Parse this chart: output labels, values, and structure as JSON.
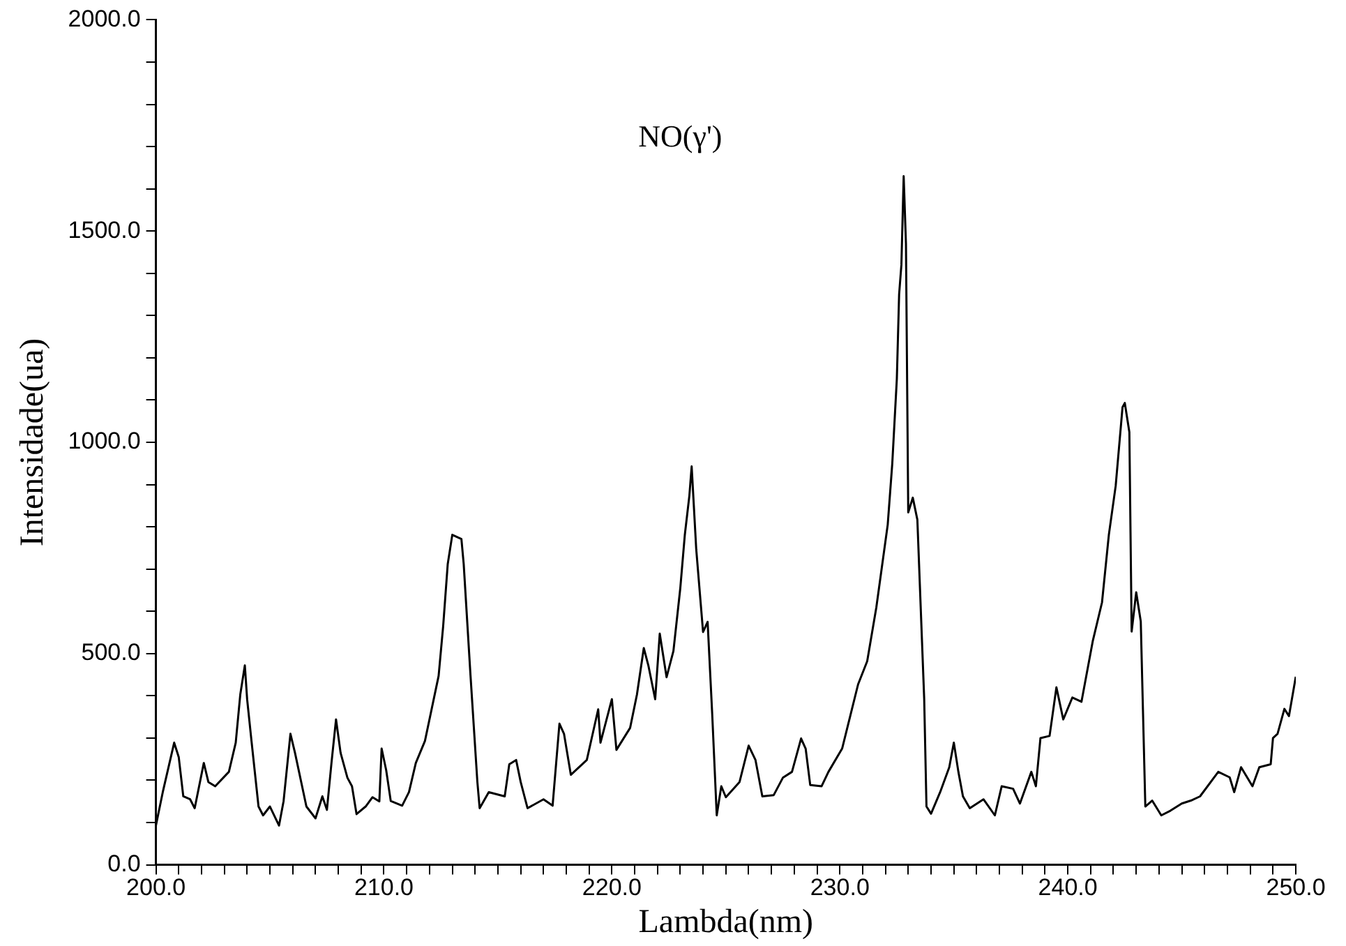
{
  "chart_data": {
    "type": "line",
    "title": "NO(γ')",
    "xlabel": "Lambda(nm)",
    "ylabel": "Intensidade(ua)",
    "x": [
      200.0,
      200.3,
      200.8,
      201.0,
      201.2,
      201.5,
      201.7,
      202.1,
      202.3,
      202.6,
      203.2,
      203.5,
      203.7,
      203.9,
      204.0,
      204.2,
      204.5,
      204.7,
      205.0,
      205.4,
      205.6,
      205.9,
      206.1,
      206.6,
      207.0,
      207.3,
      207.5,
      207.7,
      207.9,
      208.1,
      208.4,
      208.6,
      208.8,
      209.2,
      209.5,
      209.8,
      209.9,
      210.1,
      210.3,
      210.8,
      211.1,
      211.4,
      211.8,
      212.4,
      212.6,
      212.8,
      213.0,
      213.4,
      213.5,
      213.8,
      214.1,
      214.2,
      214.6,
      215.3,
      215.5,
      215.8,
      216.0,
      216.3,
      217.0,
      217.4,
      217.7,
      217.9,
      218.2,
      218.9,
      219.4,
      219.5,
      220.0,
      220.2,
      220.8,
      221.1,
      221.4,
      221.6,
      221.9,
      222.1,
      222.4,
      222.7,
      223.0,
      223.2,
      223.4,
      223.5,
      223.7,
      224.0,
      224.2,
      224.4,
      224.6,
      224.8,
      225.0,
      225.6,
      226.0,
      226.3,
      226.6,
      227.1,
      227.5,
      227.9,
      228.3,
      228.5,
      228.7,
      229.2,
      229.5,
      230.1,
      230.8,
      231.2,
      231.6,
      232.1,
      232.3,
      232.5,
      232.6,
      232.7,
      232.8,
      232.9,
      233.0,
      233.2,
      233.4,
      233.7,
      233.8,
      234.0,
      234.4,
      234.8,
      235.0,
      235.2,
      235.4,
      235.7,
      236.3,
      236.8,
      237.1,
      237.6,
      237.9,
      238.4,
      238.6,
      238.8,
      239.2,
      239.5,
      239.8,
      240.2,
      240.6,
      241.1,
      241.5,
      241.8,
      242.1,
      242.4,
      242.5,
      242.7,
      242.8,
      243.0,
      243.2,
      243.4,
      243.7,
      244.1,
      244.5,
      245.0,
      245.4,
      245.8,
      246.6,
      247.1,
      247.3,
      247.6,
      248.1,
      248.4,
      248.9,
      249.0,
      249.2,
      249.5,
      249.7,
      250.0
    ],
    "series": [
      {
        "color": "#000000",
        "values": [
          93,
          172,
          289,
          255,
          162,
          155,
          134,
          241,
          196,
          186,
          220,
          289,
          403,
          472,
          392,
          289,
          138,
          117,
          138,
          93,
          151,
          310,
          265,
          138,
          110,
          162,
          130,
          241,
          344,
          265,
          206,
          186,
          120,
          138,
          160,
          150,
          275,
          224,
          151,
          140,
          172,
          241,
          293,
          447,
          565,
          712,
          781,
          771,
          712,
          447,
          196,
          134,
          172,
          162,
          238,
          248,
          196,
          134,
          155,
          140,
          334,
          310,
          213,
          248,
          368,
          289,
          392,
          272,
          324,
          403,
          513,
          472,
          392,
          547,
          444,
          506,
          654,
          781,
          874,
          943,
          747,
          551,
          575,
          358,
          117,
          186,
          160,
          196,
          282,
          248,
          162,
          165,
          206,
          220,
          299,
          275,
          189,
          186,
          220,
          275,
          427,
          482,
          609,
          805,
          950,
          1150,
          1350,
          1420,
          1630,
          1470,
          834,
          869,
          817,
          393,
          138,
          121,
          172,
          231,
          289,
          220,
          162,
          134,
          155,
          117,
          186,
          180,
          145,
          220,
          186,
          300,
          305,
          420,
          344,
          396,
          386,
          531,
          621,
          781,
          897,
          1083,
          1093,
          1024,
          552,
          645,
          576,
          138,
          152,
          117,
          128,
          145,
          152,
          162,
          220,
          207,
          172,
          231,
          186,
          231,
          238,
          300,
          310,
          369,
          352,
          445
        ]
      }
    ],
    "xlim": [
      200,
      250
    ],
    "xticks": [
      {
        "value": 200,
        "label": "200.0"
      },
      {
        "value": 201,
        "label": null
      },
      {
        "value": 202,
        "label": null
      },
      {
        "value": 203,
        "label": null
      },
      {
        "value": 204,
        "label": null
      },
      {
        "value": 205,
        "label": null
      },
      {
        "value": 206,
        "label": null
      },
      {
        "value": 207,
        "label": null
      },
      {
        "value": 208,
        "label": null
      },
      {
        "value": 209,
        "label": null
      },
      {
        "value": 210,
        "label": "210.0"
      },
      {
        "value": 211,
        "label": null
      },
      {
        "value": 212,
        "label": null
      },
      {
        "value": 213,
        "label": null
      },
      {
        "value": 214,
        "label": null
      },
      {
        "value": 215,
        "label": null
      },
      {
        "value": 216,
        "label": null
      },
      {
        "value": 217,
        "label": null
      },
      {
        "value": 218,
        "label": null
      },
      {
        "value": 219,
        "label": null
      },
      {
        "value": 220,
        "label": "220.0"
      },
      {
        "value": 221,
        "label": null
      },
      {
        "value": 222,
        "label": null
      },
      {
        "value": 223,
        "label": null
      },
      {
        "value": 224,
        "label": null
      },
      {
        "value": 225,
        "label": null
      },
      {
        "value": 226,
        "label": null
      },
      {
        "value": 227,
        "label": null
      },
      {
        "value": 228,
        "label": null
      },
      {
        "value": 229,
        "label": null
      },
      {
        "value": 230,
        "label": "230.0"
      },
      {
        "value": 231,
        "label": null
      },
      {
        "value": 232,
        "label": null
      },
      {
        "value": 233,
        "label": null
      },
      {
        "value": 234,
        "label": null
      },
      {
        "value": 235,
        "label": null
      },
      {
        "value": 236,
        "label": null
      },
      {
        "value": 237,
        "label": null
      },
      {
        "value": 238,
        "label": null
      },
      {
        "value": 239,
        "label": null
      },
      {
        "value": 240,
        "label": "240.0"
      },
      {
        "value": 241,
        "label": null
      },
      {
        "value": 242,
        "label": null
      },
      {
        "value": 243,
        "label": null
      },
      {
        "value": 244,
        "label": null
      },
      {
        "value": 245,
        "label": null
      },
      {
        "value": 246,
        "label": null
      },
      {
        "value": 247,
        "label": null
      },
      {
        "value": 248,
        "label": null
      },
      {
        "value": 249,
        "label": null
      },
      {
        "value": 250,
        "label": "250.0"
      }
    ],
    "ylim": [
      0,
      2000
    ],
    "yticks": [
      {
        "value": 0,
        "label": "0.0"
      },
      {
        "value": 100,
        "label": null
      },
      {
        "value": 200,
        "label": null
      },
      {
        "value": 300,
        "label": null
      },
      {
        "value": 400,
        "label": null
      },
      {
        "value": 500,
        "label": "500.0"
      },
      {
        "value": 600,
        "label": null
      },
      {
        "value": 700,
        "label": null
      },
      {
        "value": 800,
        "label": null
      },
      {
        "value": 900,
        "label": null
      },
      {
        "value": 1000,
        "label": "1000.0"
      },
      {
        "value": 1100,
        "label": null
      },
      {
        "value": 1200,
        "label": null
      },
      {
        "value": 1300,
        "label": null
      },
      {
        "value": 1400,
        "label": null
      },
      {
        "value": 1500,
        "label": "1500.0"
      },
      {
        "value": 1600,
        "label": null
      },
      {
        "value": 1700,
        "label": null
      },
      {
        "value": 1800,
        "label": null
      },
      {
        "value": 1900,
        "label": null
      },
      {
        "value": 2000,
        "label": "2000.0"
      }
    ],
    "grid": false,
    "legend": false,
    "marker": "none",
    "line_style": "solid"
  }
}
